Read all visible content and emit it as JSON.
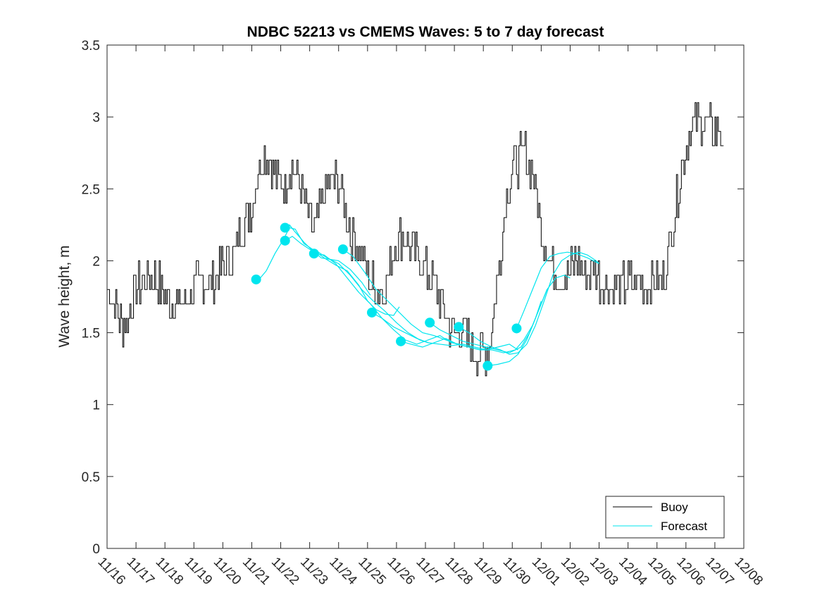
{
  "chart_data": {
    "type": "line",
    "title": "NDBC 52213 vs CMEMS Waves: 5 to 7 day forecast",
    "xlabel": "",
    "ylabel": "Wave height, m",
    "xlim": [
      0,
      22
    ],
    "ylim": [
      0,
      3.5
    ],
    "yticks": [
      0,
      0.5,
      1,
      1.5,
      2,
      2.5,
      3,
      3.5
    ],
    "ytick_labels": [
      "0",
      "0.5",
      "1",
      "1.5",
      "2",
      "2.5",
      "3",
      "3.5"
    ],
    "xtick_labels": [
      "11/16",
      "11/17",
      "11/18",
      "11/19",
      "11/20",
      "11/21",
      "11/22",
      "11/23",
      "11/24",
      "11/25",
      "11/26",
      "11/27",
      "11/28",
      "11/29",
      "11/30",
      "12/01",
      "12/02",
      "12/03",
      "12/04",
      "12/05",
      "12/06",
      "12/07",
      "12/08"
    ],
    "legend": {
      "position": "bottom-right",
      "entries": [
        "Buoy",
        "Forecast"
      ]
    },
    "colors": {
      "buoy": "#000000",
      "forecast": "#00e5ee",
      "axes": "#262626"
    },
    "series": [
      {
        "name": "Buoy",
        "color": "#000000",
        "x": [
          0,
          0.3,
          0.5,
          0.7,
          1.0,
          1.3,
          1.6,
          2.0,
          2.4,
          2.8,
          3.2,
          3.6,
          4.0,
          4.3,
          4.6,
          5.0,
          5.3,
          5.6,
          5.8,
          6.1,
          6.3,
          6.6,
          6.9,
          7.2,
          7.5,
          7.8,
          8.1,
          8.4,
          8.7,
          9.0,
          9.3,
          9.6,
          9.9,
          10.2,
          10.5,
          10.8,
          11.1,
          11.4,
          11.7,
          12.0,
          12.3,
          12.6,
          12.9,
          13.2,
          13.5,
          13.8,
          14.1,
          14.4,
          14.7,
          15.0,
          15.3,
          15.6,
          15.9,
          16.2,
          16.5,
          16.8,
          17.1,
          17.4,
          17.7,
          18.0,
          18.3,
          18.6,
          18.9,
          19.2,
          19.5,
          19.8,
          20.1,
          20.4,
          20.7,
          21.0,
          21.2,
          21.3
        ],
        "values": [
          1.8,
          1.7,
          1.55,
          1.6,
          1.8,
          1.85,
          1.9,
          1.75,
          1.7,
          1.75,
          1.85,
          1.85,
          1.95,
          2.0,
          2.2,
          2.4,
          2.7,
          2.75,
          2.6,
          2.5,
          2.65,
          2.55,
          2.3,
          2.2,
          2.5,
          2.55,
          2.5,
          2.2,
          2.1,
          1.9,
          1.8,
          1.8,
          2.1,
          2.2,
          2.1,
          2.0,
          1.9,
          1.8,
          1.6,
          1.5,
          1.5,
          1.4,
          1.35,
          1.4,
          1.9,
          2.5,
          2.65,
          2.75,
          2.6,
          2.2,
          2.0,
          1.9,
          1.9,
          2.0,
          1.9,
          1.95,
          1.85,
          1.8,
          1.8,
          1.85,
          1.85,
          1.8,
          1.9,
          1.85,
          2.2,
          2.6,
          2.9,
          3.0,
          2.95,
          2.9,
          2.9,
          2.8
        ]
      },
      {
        "name": "Forecast",
        "color": "#00e5ee",
        "segments": [
          {
            "x": [
              5.25,
              5.5,
              5.8,
              6.1,
              6.3,
              6.5,
              6.8,
              7.1,
              7.5,
              7.9,
              8.3,
              8.7,
              9.0,
              9.3,
              9.6,
              9.9,
              10.1
            ],
            "values": [
              1.87,
              1.93,
              2.05,
              2.15,
              2.23,
              2.22,
              2.12,
              2.08,
              2.02,
              1.97,
              1.93,
              1.83,
              1.72,
              1.66,
              1.63,
              1.62,
              1.68
            ]
          },
          {
            "x": [
              6.15,
              6.4,
              6.7,
              7.0,
              7.3,
              7.6,
              8.0,
              8.4,
              8.8,
              9.2,
              9.6,
              10.0,
              10.4,
              10.8,
              11.1
            ],
            "values": [
              2.14,
              2.17,
              2.12,
              2.08,
              2.06,
              2.02,
              1.98,
              1.9,
              1.8,
              1.72,
              1.65,
              1.57,
              1.5,
              1.45,
              1.43
            ]
          },
          {
            "x": [
              6.15,
              6.3,
              6.5,
              6.8,
              7.1,
              7.4,
              7.7,
              8.0,
              8.4,
              8.8,
              9.1
            ],
            "values": [
              2.23,
              2.25,
              2.2,
              2.13,
              2.07,
              2.02,
              2.01,
              2.0,
              1.94,
              1.85,
              1.76
            ]
          },
          {
            "x": [
              7.15,
              7.5,
              7.9,
              8.3,
              8.7,
              9.1,
              9.5,
              9.9,
              10.3,
              10.7,
              11.1,
              11.5,
              11.9,
              12.2
            ],
            "values": [
              2.05,
              2.04,
              1.98,
              1.88,
              1.78,
              1.7,
              1.6,
              1.52,
              1.45,
              1.42,
              1.45,
              1.48,
              1.43,
              1.42
            ]
          },
          {
            "x": [
              8.15,
              8.5,
              8.9,
              9.3,
              9.7,
              10.1,
              10.5,
              10.9,
              11.3,
              11.7,
              12.1,
              12.5,
              12.9,
              13.2
            ],
            "values": [
              2.08,
              2.03,
              1.92,
              1.8,
              1.72,
              1.64,
              1.56,
              1.5,
              1.48,
              1.45,
              1.42,
              1.4,
              1.38,
              1.4
            ]
          },
          {
            "x": [
              9.15,
              9.5,
              9.9,
              10.3,
              10.7,
              11.1,
              11.5,
              11.9,
              12.3,
              12.7,
              13.1,
              13.5,
              13.9,
              14.2
            ],
            "values": [
              1.64,
              1.6,
              1.54,
              1.5,
              1.46,
              1.43,
              1.42,
              1.41,
              1.42,
              1.4,
              1.38,
              1.4,
              1.42,
              1.38
            ]
          },
          {
            "x": [
              10.15,
              10.5,
              10.9,
              11.3,
              11.7,
              12.1,
              12.5,
              12.9,
              13.3,
              13.7,
              14.1,
              14.4,
              14.7,
              15.0,
              15.2
            ],
            "values": [
              1.44,
              1.42,
              1.4,
              1.43,
              1.46,
              1.42,
              1.4,
              1.38,
              1.38,
              1.36,
              1.38,
              1.45,
              1.55,
              1.7,
              1.8
            ]
          },
          {
            "x": [
              11.15,
              11.5,
              11.9,
              12.3,
              12.7,
              13.1,
              13.5,
              13.9,
              14.3,
              14.6,
              14.9,
              15.2,
              15.5,
              15.8,
              16.0
            ],
            "values": [
              1.57,
              1.52,
              1.48,
              1.44,
              1.42,
              1.4,
              1.38,
              1.36,
              1.4,
              1.5,
              1.65,
              1.8,
              1.88,
              1.9,
              1.88
            ]
          },
          {
            "x": [
              12.15,
              12.5,
              12.9,
              13.3,
              13.6,
              13.9,
              14.2,
              14.5,
              14.8,
              15.1,
              15.4,
              15.7,
              16.0,
              16.3,
              16.6,
              16.9,
              17.0
            ],
            "values": [
              1.54,
              1.5,
              1.44,
              1.4,
              1.38,
              1.35,
              1.36,
              1.42,
              1.55,
              1.72,
              1.9,
              2.0,
              2.04,
              2.06,
              2.04,
              2.0,
              1.98
            ]
          },
          {
            "x": [
              13.15,
              13.5,
              13.9,
              14.2,
              14.5,
              14.8,
              15.0
            ],
            "values": [
              1.27,
              1.28,
              1.3,
              1.35,
              1.45,
              1.6,
              1.72
            ]
          },
          {
            "x": [
              14.15,
              14.4,
              14.7,
              15.0,
              15.3,
              15.6,
              15.9,
              16.2,
              16.6,
              17.0
            ],
            "values": [
              1.53,
              1.65,
              1.8,
              1.95,
              2.03,
              2.05,
              2.06,
              2.05,
              2.02,
              1.98
            ]
          }
        ],
        "markers": {
          "x": [
            5.15,
            6.15,
            6.15,
            7.15,
            8.15,
            9.15,
            10.15,
            11.15,
            12.15,
            13.15,
            14.15
          ],
          "values": [
            1.87,
            2.14,
            2.23,
            2.05,
            2.08,
            1.64,
            1.44,
            1.57,
            1.54,
            1.27,
            1.53
          ]
        }
      }
    ]
  }
}
